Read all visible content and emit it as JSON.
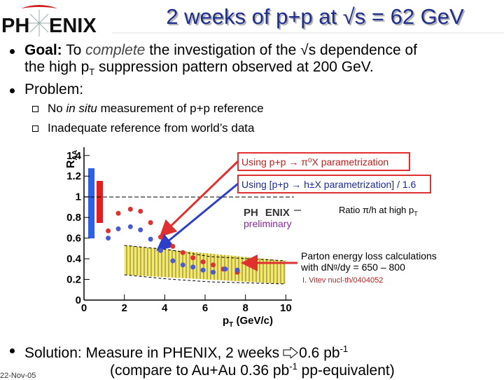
{
  "logo": {
    "left": "PH",
    "right": "ENIX"
  },
  "title": "2 weeks of p+p at √s = 62 GeV",
  "goal": {
    "label": "Goal:",
    "text1": " To ",
    "em": "complete",
    "text2": " the investigation of the √s dependence of",
    "line2": "the high p",
    "sub": "T",
    "text3": " suppression pattern observed at 200 GeV."
  },
  "problem": "Problem:",
  "sub_bullets": [
    {
      "text1": "No ",
      "em": "in situ",
      "text2": " measurement of p+p reference"
    },
    {
      "text": "Inadequate reference from world’s data"
    }
  ],
  "solution": {
    "line1": "Solution: Measure in PHENIX, 2 weeks",
    "amount": "0.6 pb",
    "amount_sup": "-1",
    "line2": "(compare to Au+Au 0.36 pb",
    "line2_sup": "-1",
    "line2_end": " pp-equivalent)"
  },
  "footer_date": "22-Nov-05",
  "chart_data": {
    "type": "scatter",
    "ylabel": "R",
    "ylabel_sub": "AA",
    "xlabel": "p",
    "xlabel_sub": "T",
    "xlabel_unit": " (GeV/c)",
    "xlim": [
      0,
      10.3
    ],
    "ylim": [
      0,
      1.48
    ],
    "xticks": [
      0,
      2,
      4,
      6,
      8,
      10
    ],
    "yticks": [
      0,
      0.2,
      0.4,
      0.6,
      0.8,
      1,
      1.2,
      1.4
    ],
    "series": [
      {
        "name": "Using p+p → π⁰X parametrization",
        "color": "#e03030",
        "x": [
          1.2,
          1.7,
          2.3,
          2.8,
          3.3,
          3.8,
          4.4,
          4.9,
          5.4,
          5.9,
          6.4,
          6.9,
          7.6
        ],
        "values": [
          0.67,
          0.84,
          0.88,
          0.86,
          0.75,
          0.61,
          0.52,
          0.46,
          0.41,
          0.37,
          0.34,
          0.3,
          0.27
        ]
      },
      {
        "name": "Using [p+p → h±X parametrization] / 1.6",
        "color": "#4a5ad0",
        "x": [
          1.2,
          1.7,
          2.3,
          2.8,
          3.3,
          3.8,
          4.4,
          4.9,
          5.4,
          5.9,
          6.4,
          7.0,
          7.6
        ],
        "values": [
          0.6,
          0.69,
          0.71,
          0.68,
          0.59,
          0.48,
          0.38,
          0.34,
          0.32,
          0.29,
          0.27,
          0.3,
          0.29
        ]
      }
    ],
    "annotations": {
      "ratio": "Ratio π/h at high p",
      "ratio_sub": "T",
      "prelim_logo_left": "PH",
      "prelim_logo_right": "ENIX",
      "prelim": "preliminary",
      "theory1": "Parton energy loss calculations",
      "theory2": "with dNᵍ/dy = 650 – 800",
      "theory_ref": "I. Vitev nucl-th/0404052"
    }
  }
}
